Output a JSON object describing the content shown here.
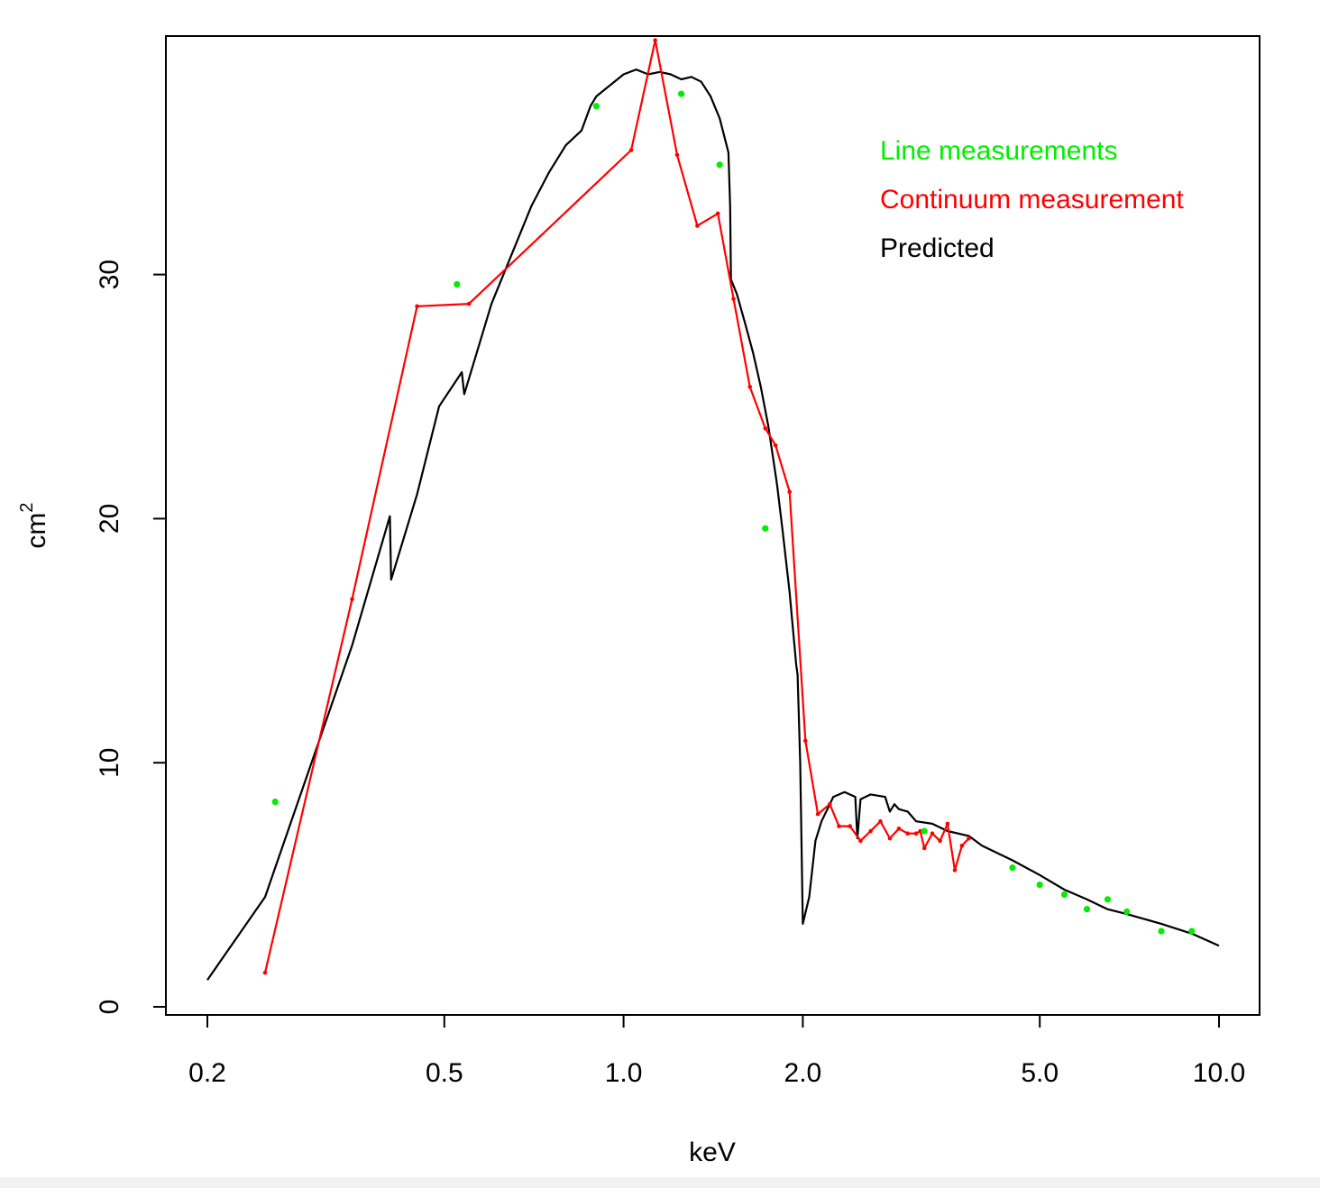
{
  "chart_data": {
    "type": "line",
    "xlabel": "keV",
    "ylabel": "cm",
    "ylabel_superscript": "2",
    "x_scale": "log",
    "xlim": [
      0.2,
      10.0
    ],
    "ylim": [
      0,
      40
    ],
    "x_ticks": [
      {
        "value": 0.2,
        "label": "0.2"
      },
      {
        "value": 0.5,
        "label": "0.5"
      },
      {
        "value": 1.0,
        "label": "1.0"
      },
      {
        "value": 2.0,
        "label": "2.0"
      },
      {
        "value": 5.0,
        "label": "5.0"
      },
      {
        "value": 10.0,
        "label": "10.0"
      }
    ],
    "y_ticks": [
      {
        "value": 0,
        "label": "0"
      },
      {
        "value": 10,
        "label": "10"
      },
      {
        "value": 20,
        "label": "20"
      },
      {
        "value": 30,
        "label": "30"
      }
    ],
    "grid": false,
    "legend_placement": "top-right",
    "legend": [
      {
        "label": "Line measurements",
        "color": "#00ee00"
      },
      {
        "label": "Continuum measurement",
        "color": "#ff0000"
      },
      {
        "label": "Predicted",
        "color": "#000000"
      }
    ],
    "series": [
      {
        "name": "Predicted",
        "style": "line",
        "color": "#000000",
        "points": [
          [
            0.2,
            1.1
          ],
          [
            0.25,
            4.5
          ],
          [
            0.35,
            14.8
          ],
          [
            0.405,
            20.1
          ],
          [
            0.407,
            17.5
          ],
          [
            0.45,
            21.0
          ],
          [
            0.49,
            24.6
          ],
          [
            0.535,
            26.0
          ],
          [
            0.54,
            25.1
          ],
          [
            0.6,
            28.8
          ],
          [
            0.7,
            32.8
          ],
          [
            0.75,
            34.2
          ],
          [
            0.8,
            35.3
          ],
          [
            0.85,
            35.9
          ],
          [
            0.88,
            36.9
          ],
          [
            0.9,
            37.3
          ],
          [
            1.0,
            38.2
          ],
          [
            1.05,
            38.4
          ],
          [
            1.1,
            38.2
          ],
          [
            1.15,
            38.3
          ],
          [
            1.2,
            38.2
          ],
          [
            1.25,
            38.0
          ],
          [
            1.3,
            38.1
          ],
          [
            1.35,
            37.9
          ],
          [
            1.4,
            37.3
          ],
          [
            1.45,
            36.4
          ],
          [
            1.5,
            35.0
          ],
          [
            1.51,
            32.8
          ],
          [
            1.515,
            29.8
          ],
          [
            1.55,
            29.2
          ],
          [
            1.6,
            28.0
          ],
          [
            1.65,
            26.8
          ],
          [
            1.7,
            25.4
          ],
          [
            1.75,
            23.8
          ],
          [
            1.8,
            21.8
          ],
          [
            1.81,
            21.4
          ],
          [
            1.85,
            19.5
          ],
          [
            1.9,
            17.0
          ],
          [
            1.95,
            14.0
          ],
          [
            1.96,
            13.6
          ],
          [
            1.98,
            10.0
          ],
          [
            2.0,
            3.4
          ],
          [
            2.05,
            4.5
          ],
          [
            2.1,
            6.8
          ],
          [
            2.15,
            7.6
          ],
          [
            2.2,
            8.1
          ],
          [
            2.25,
            8.6
          ],
          [
            2.35,
            8.8
          ],
          [
            2.45,
            8.6
          ],
          [
            2.47,
            6.9
          ],
          [
            2.5,
            8.5
          ],
          [
            2.6,
            8.7
          ],
          [
            2.75,
            8.6
          ],
          [
            2.8,
            8.0
          ],
          [
            2.85,
            8.3
          ],
          [
            2.9,
            8.1
          ],
          [
            3.0,
            8.0
          ],
          [
            3.1,
            7.6
          ],
          [
            3.3,
            7.5
          ],
          [
            3.5,
            7.2
          ],
          [
            3.8,
            7.0
          ],
          [
            4.0,
            6.6
          ],
          [
            4.5,
            6.0
          ],
          [
            5.0,
            5.4
          ],
          [
            5.5,
            4.8
          ],
          [
            6.0,
            4.4
          ],
          [
            6.5,
            4.0
          ],
          [
            7.0,
            3.8
          ],
          [
            8.0,
            3.4
          ],
          [
            9.0,
            3.0
          ],
          [
            10.0,
            2.5
          ]
        ]
      },
      {
        "name": "Continuum measurement",
        "style": "line-points",
        "color": "#ff0000",
        "points": [
          [
            0.25,
            1.4
          ],
          [
            0.35,
            16.7
          ],
          [
            0.45,
            28.7
          ],
          [
            0.55,
            28.8
          ],
          [
            1.03,
            35.1
          ],
          [
            1.13,
            39.6
          ],
          [
            1.23,
            34.9
          ],
          [
            1.33,
            32.0
          ],
          [
            1.44,
            32.5
          ],
          [
            1.53,
            29.0
          ],
          [
            1.63,
            25.4
          ],
          [
            1.73,
            23.7
          ],
          [
            1.8,
            23.0
          ],
          [
            1.9,
            21.1
          ],
          [
            2.02,
            10.9
          ],
          [
            2.12,
            7.9
          ],
          [
            2.22,
            8.3
          ],
          [
            2.3,
            7.4
          ],
          [
            2.4,
            7.4
          ],
          [
            2.5,
            6.8
          ],
          [
            2.6,
            7.2
          ],
          [
            2.7,
            7.6
          ],
          [
            2.8,
            6.9
          ],
          [
            2.9,
            7.3
          ],
          [
            3.0,
            7.1
          ],
          [
            3.1,
            7.1
          ],
          [
            3.15,
            7.2
          ],
          [
            3.2,
            6.5
          ],
          [
            3.3,
            7.1
          ],
          [
            3.4,
            6.8
          ],
          [
            3.5,
            7.5
          ],
          [
            3.6,
            5.6
          ],
          [
            3.7,
            6.6
          ],
          [
            3.8,
            6.9
          ]
        ]
      },
      {
        "name": "Line measurements",
        "style": "points",
        "color": "#00ee00",
        "points": [
          [
            0.26,
            8.4
          ],
          [
            0.525,
            29.6
          ],
          [
            0.9,
            36.9
          ],
          [
            1.25,
            37.4
          ],
          [
            1.45,
            34.5
          ],
          [
            1.73,
            19.6
          ],
          [
            3.2,
            7.2
          ],
          [
            4.5,
            5.7
          ],
          [
            5.0,
            5.0
          ],
          [
            5.5,
            4.6
          ],
          [
            6.0,
            4.0
          ],
          [
            6.5,
            4.4
          ],
          [
            7.0,
            3.9
          ],
          [
            8.0,
            3.1
          ],
          [
            9.0,
            3.1
          ]
        ]
      }
    ]
  }
}
